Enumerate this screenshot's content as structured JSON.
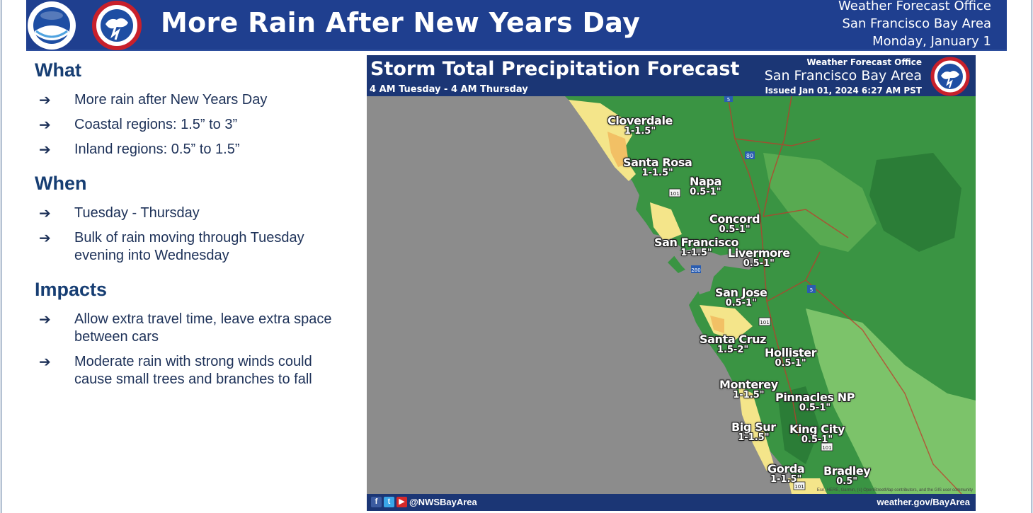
{
  "header": {
    "title": "More Rain After New Years Day",
    "office_line1": "Weather Forecast Office",
    "office_line2": "San Francisco Bay Area",
    "date": "Monday, January 1"
  },
  "sections": [
    {
      "title": "What",
      "bullets": [
        "More rain after New Years Day",
        "Coastal regions: 1.5” to 3”",
        "Inland regions: 0.5” to 1.5”"
      ]
    },
    {
      "title": "When",
      "bullets": [
        "Tuesday - Thursday",
        "Bulk of rain moving through Tuesday evening into Wednesday"
      ]
    },
    {
      "title": "Impacts",
      "bullets": [
        "Allow extra travel time, leave extra space between cars",
        "Moderate rain with strong winds could cause small trees and branches to fall"
      ]
    }
  ],
  "bullet_arrow": "➔",
  "map": {
    "title": "Storm Total Precipitation Forecast",
    "time_range": "4 AM Tuesday - 4 AM Thursday",
    "office_small": "Weather Forecast Office",
    "office_big": "San Francisco Bay Area",
    "issued": "Issued Jan 01, 2024 6:27 AM PST",
    "handle": "@NWSBayArea",
    "website": "weather.gov/BayArea",
    "attribution": "Esri, HERE, Garmin, (c) OpenStreetMap contributors, and the GIS user community",
    "highway_shields": [
      "5",
      "80",
      "101",
      "101",
      "280",
      "5",
      "101",
      "101"
    ],
    "cities": [
      {
        "name": "Cloverdale",
        "amount": "1-1.5\""
      },
      {
        "name": "Santa Rosa",
        "amount": "1-1.5\""
      },
      {
        "name": "Napa",
        "amount": "0.5-1\""
      },
      {
        "name": "Concord",
        "amount": "0.5-1\""
      },
      {
        "name": "San Francisco",
        "amount": "1-1.5\""
      },
      {
        "name": "Livermore",
        "amount": "0.5-1\""
      },
      {
        "name": "San Jose",
        "amount": "0.5-1\""
      },
      {
        "name": "Santa Cruz",
        "amount": "1.5-2\""
      },
      {
        "name": "Hollister",
        "amount": "0.5-1\""
      },
      {
        "name": "Monterey",
        "amount": "1-1.5\""
      },
      {
        "name": "Pinnacles NP",
        "amount": "0.5-1\""
      },
      {
        "name": "Big Sur",
        "amount": "1-1.5\""
      },
      {
        "name": "King City",
        "amount": "0.5-1\""
      },
      {
        "name": "Gorda",
        "amount": "1-1.5\""
      },
      {
        "name": "Bradley",
        "amount": "0.5\""
      }
    ]
  },
  "colors": {
    "header_bg": "#1f3f8f",
    "title_navy": "#173e73",
    "ocean_gray": "#8c8c8c",
    "precip_dark_green": "#2f8a3e",
    "precip_green": "#4ea44c",
    "precip_light_green": "#7cc36a",
    "precip_yellow": "#f4e58a",
    "precip_orange": "#f2c065"
  }
}
